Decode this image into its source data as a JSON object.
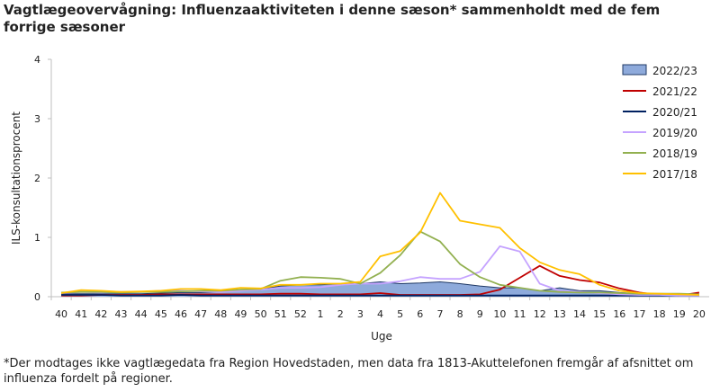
{
  "title": "Vagtlægeovervågning: Influenzaaktiviteten  i denne sæson*  sammenholdt med de fem forrige sæsoner",
  "footnote": "*Der modtages ikke vagtlægedata fra Region Hovedstaden, men data fra 1813-Akuttelefonen  fremgår af afsnittet om influenza fordelt på regioner.",
  "chart_data": {
    "type": "line",
    "title": "Vagtlægeovervågning: Influenzaaktiviteten  i denne sæson*  sammenholdt med de fem forrige sæsoner",
    "xlabel": "Uge",
    "ylabel": "ILS-konsultationsprocent",
    "ylim": [
      0,
      4
    ],
    "yticks": [
      0,
      1,
      2,
      3,
      4
    ],
    "grid": false,
    "legend_position": "right",
    "categories": [
      "40",
      "41",
      "42",
      "43",
      "44",
      "45",
      "46",
      "47",
      "48",
      "49",
      "50",
      "51",
      "52",
      "1",
      "2",
      "3",
      "4",
      "5",
      "6",
      "7",
      "8",
      "9",
      "10",
      "11",
      "12",
      "13",
      "14",
      "15",
      "16",
      "17",
      "18",
      "19",
      "20"
    ],
    "series": [
      {
        "name": "2022/23",
        "style": "area",
        "color": "#8eaadb",
        "edge": "#1f3864",
        "values": [
          0.05,
          0.05,
          0.05,
          0.05,
          0.05,
          0.06,
          0.07,
          0.07,
          0.08,
          0.1,
          0.13,
          0.18,
          0.2,
          0.2,
          0.22,
          0.22,
          0.25,
          0.22,
          0.23,
          0.25,
          0.22,
          0.18,
          0.15,
          0.15,
          0.1,
          0.15,
          0.1,
          0.1,
          0.07,
          0.05,
          0.05,
          0.04,
          0.04
        ]
      },
      {
        "name": "2021/22",
        "color": "#c00000",
        "values": [
          0.02,
          0.02,
          0.03,
          0.03,
          0.03,
          0.04,
          0.04,
          0.04,
          0.04,
          0.04,
          0.04,
          0.05,
          0.05,
          0.04,
          0.04,
          0.04,
          0.06,
          0.03,
          0.03,
          0.03,
          0.03,
          0.04,
          0.12,
          0.32,
          0.52,
          0.35,
          0.28,
          0.24,
          0.14,
          0.07,
          0.03,
          0.02,
          0.07
        ]
      },
      {
        "name": "2020/21",
        "color": "#002060",
        "values": [
          0.03,
          0.03,
          0.03,
          0.02,
          0.02,
          0.02,
          0.03,
          0.02,
          0.02,
          0.02,
          0.02,
          0.02,
          0.02,
          0.02,
          0.02,
          0.02,
          0.02,
          0.02,
          0.02,
          0.02,
          0.02,
          0.02,
          0.02,
          0.02,
          0.02,
          0.02,
          0.02,
          0.02,
          0.02,
          0.02,
          0.02,
          0.02,
          0.02
        ]
      },
      {
        "name": "2019/20",
        "color": "#c5a3ff",
        "values": [
          0.06,
          0.08,
          0.07,
          0.08,
          0.08,
          0.1,
          0.1,
          0.09,
          0.08,
          0.1,
          0.12,
          0.15,
          0.15,
          0.16,
          0.2,
          0.22,
          0.22,
          0.26,
          0.33,
          0.3,
          0.3,
          0.42,
          0.85,
          0.76,
          0.22,
          0.1,
          0.08,
          0.06,
          0.04,
          0.03,
          0.03,
          0.02,
          0.02
        ]
      },
      {
        "name": "2018/19",
        "color": "#92b050",
        "values": [
          0.07,
          0.08,
          0.08,
          0.07,
          0.08,
          0.08,
          0.09,
          0.1,
          0.1,
          0.12,
          0.13,
          0.27,
          0.33,
          0.32,
          0.3,
          0.22,
          0.4,
          0.7,
          1.1,
          0.93,
          0.55,
          0.33,
          0.2,
          0.15,
          0.1,
          0.08,
          0.07,
          0.07,
          0.06,
          0.05,
          0.05,
          0.05,
          0.04
        ]
      },
      {
        "name": "2017/18",
        "color": "#ffc000",
        "values": [
          0.06,
          0.11,
          0.1,
          0.08,
          0.09,
          0.1,
          0.13,
          0.13,
          0.11,
          0.15,
          0.14,
          0.2,
          0.2,
          0.22,
          0.22,
          0.25,
          0.68,
          0.77,
          1.08,
          1.75,
          1.28,
          1.22,
          1.16,
          0.82,
          0.58,
          0.45,
          0.38,
          0.2,
          0.1,
          0.06,
          0.05,
          0.04,
          0.03
        ]
      }
    ]
  }
}
